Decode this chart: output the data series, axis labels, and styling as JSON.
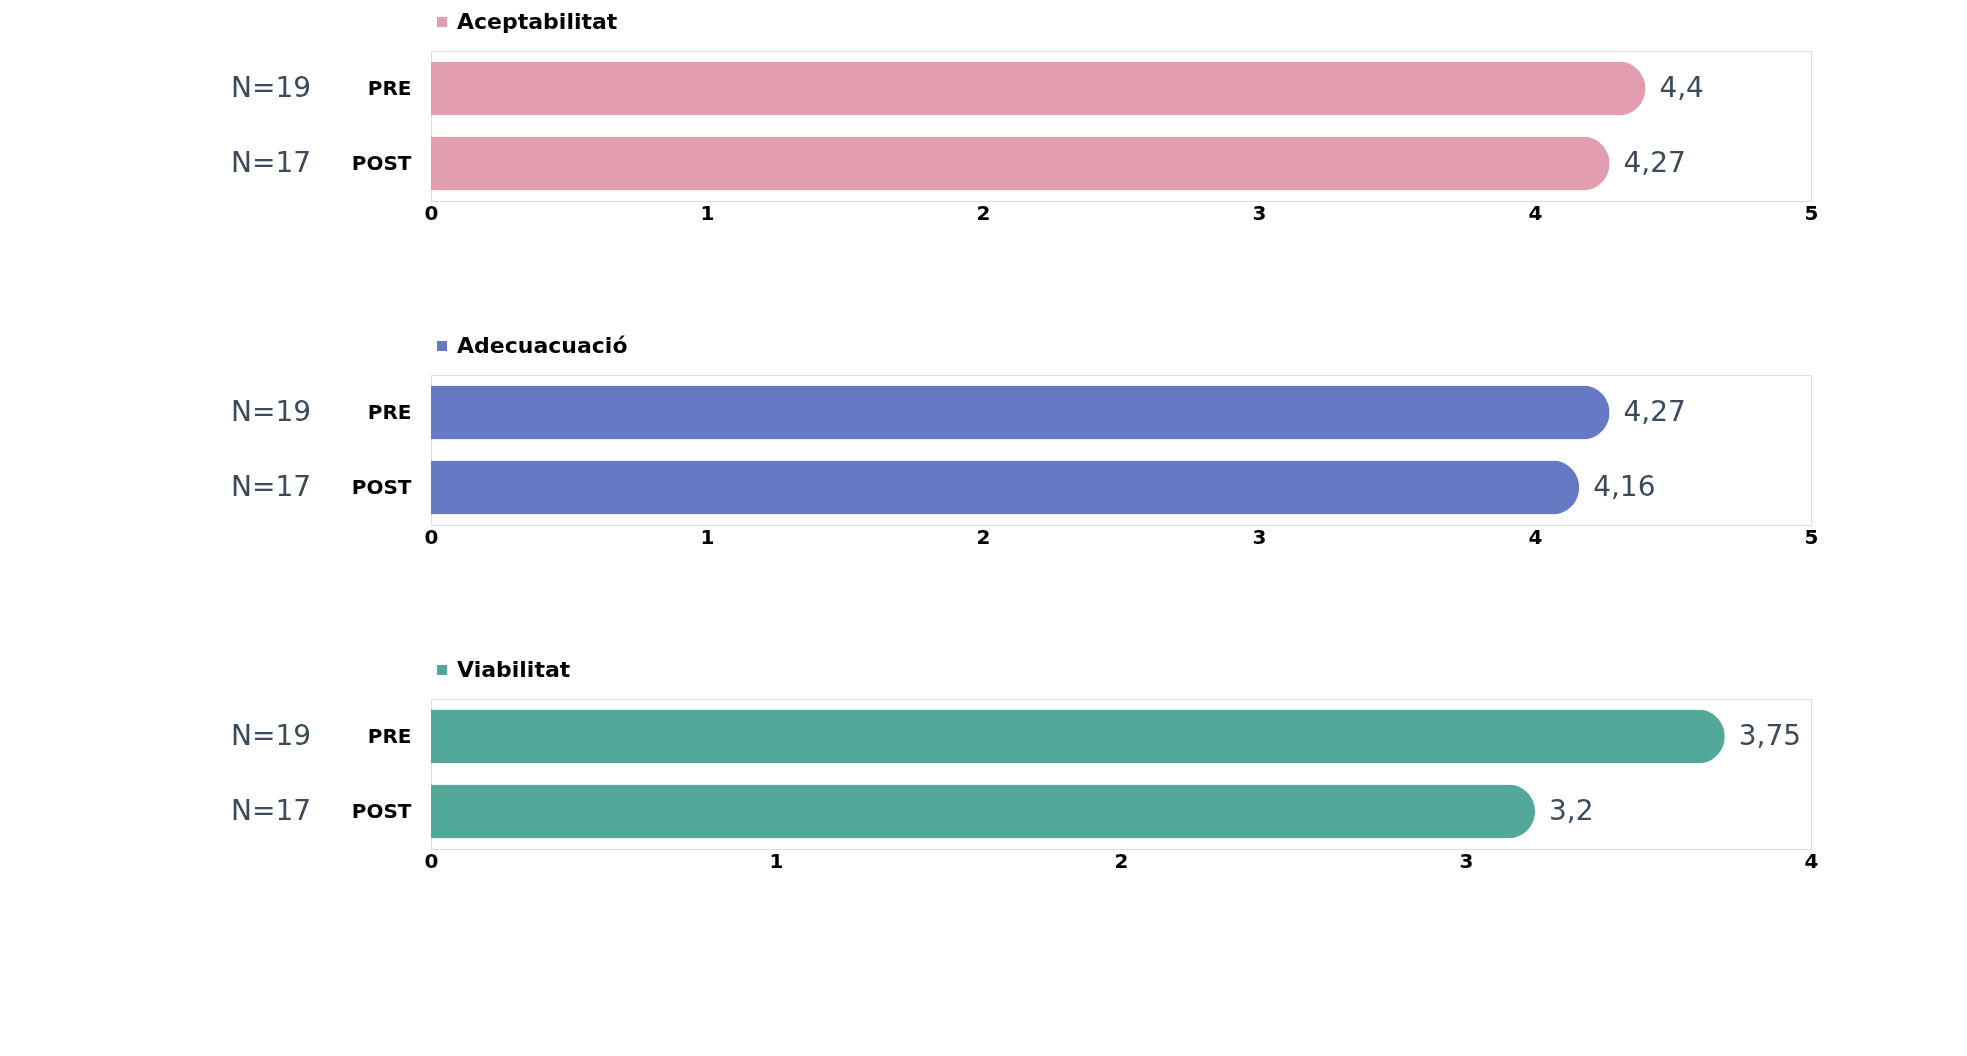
{
  "chart_data": [
    {
      "type": "bar",
      "orientation": "horizontal",
      "categories": [
        "PRE",
        "POST"
      ],
      "series": [
        {
          "name": "Aceptabilitat",
          "color": "#e29eaf",
          "values": [
            4.4,
            4.27
          ],
          "value_labels": [
            "4,4",
            "4,27"
          ]
        }
      ],
      "xlim": [
        0,
        5
      ],
      "xticks": [
        0,
        1,
        2,
        3,
        4,
        5
      ],
      "grid": false,
      "legend": "top",
      "annotations": [
        "N=19",
        "N=17"
      ]
    },
    {
      "type": "bar",
      "orientation": "horizontal",
      "categories": [
        "PRE",
        "POST"
      ],
      "series": [
        {
          "name": "Adecuacuació",
          "color": "#6679c4",
          "values": [
            4.27,
            4.16
          ],
          "value_labels": [
            "4,27",
            "4,16"
          ]
        }
      ],
      "xlim": [
        0,
        5
      ],
      "xticks": [
        0,
        1,
        2,
        3,
        4,
        5
      ],
      "grid": false,
      "legend": "top",
      "annotations": [
        "N=19",
        "N=17"
      ]
    },
    {
      "type": "bar",
      "orientation": "horizontal",
      "categories": [
        "PRE",
        "POST"
      ],
      "series": [
        {
          "name": "Viabilitat",
          "color": "#52a999",
          "values": [
            3.75,
            3.2
          ],
          "value_labels": [
            "3,75",
            "3,2"
          ]
        }
      ],
      "xlim": [
        0,
        4
      ],
      "xticks": [
        0,
        1,
        2,
        3,
        4
      ],
      "grid": false,
      "legend": "top",
      "annotations": [
        "N=19",
        "N=17"
      ]
    }
  ]
}
